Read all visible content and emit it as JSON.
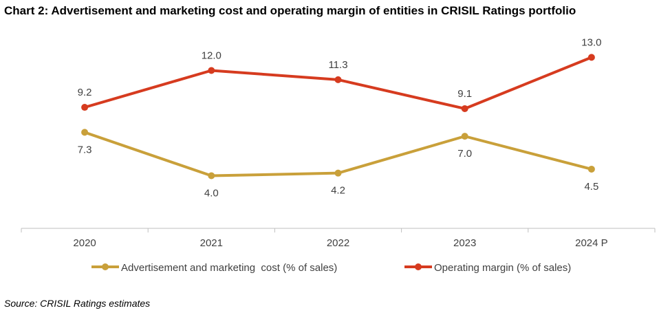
{
  "chart_data": {
    "type": "line",
    "title": "Chart 2: Advertisement and marketing cost and operating margin of entities in CRISIL Ratings portfolio",
    "categories": [
      "2020",
      "2021",
      "2022",
      "2023",
      "2024 P"
    ],
    "series": [
      {
        "name": "Advertisement and marketing  cost (% of sales)",
        "values": [
          7.3,
          4.0,
          4.2,
          7.0,
          4.5
        ],
        "color": "#C9A03A",
        "label_position": "below"
      },
      {
        "name": "Operating margin (% of sales)",
        "values": [
          9.2,
          12.0,
          11.3,
          9.1,
          13.0
        ],
        "color": "#D63B1F",
        "label_position": "above"
      }
    ],
    "ylim": [
      0,
      16
    ],
    "grid": false,
    "y_axis_visible": false,
    "legend": "bottom",
    "source": "Source: CRISIL Ratings estimates"
  }
}
